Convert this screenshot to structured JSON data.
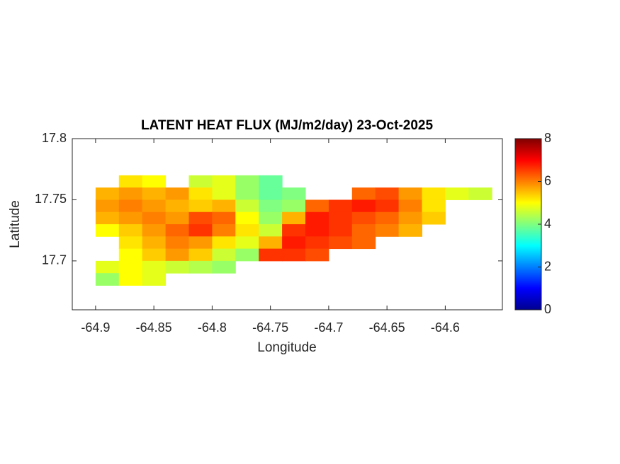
{
  "chart_data": {
    "type": "heatmap",
    "title": "LATENT HEAT FLUX (MJ/m2/day) 23-Oct-2025",
    "xlabel": "Longitude",
    "ylabel": "Latitude",
    "xlim": [
      -64.92,
      -64.551
    ],
    "ylim": [
      17.66,
      17.8
    ],
    "xticks": [
      -64.9,
      -64.85,
      -64.8,
      -64.75,
      -64.7,
      -64.65,
      -64.6
    ],
    "yticks": [
      17.7,
      17.75,
      17.8
    ],
    "colormap": "jet",
    "clim": [
      0,
      8
    ],
    "cticks": [
      0,
      2,
      4,
      6,
      8
    ],
    "x": [
      -64.89,
      -64.87,
      -64.85,
      -64.83,
      -64.81,
      -64.79,
      -64.77,
      -64.75,
      -64.73,
      -64.71,
      -64.69,
      -64.67,
      -64.65,
      -64.63,
      -64.61,
      -64.59,
      -64.57
    ],
    "y": [
      17.765,
      17.755,
      17.745,
      17.735,
      17.725,
      17.715,
      17.705,
      17.695,
      17.685
    ],
    "z": [
      [
        null,
        5.2,
        5.0,
        null,
        4.6,
        4.8,
        4.2,
        3.8,
        null,
        null,
        null,
        null,
        null,
        null,
        null,
        null,
        null
      ],
      [
        5.6,
        5.8,
        5.6,
        5.8,
        5.2,
        4.8,
        4.2,
        3.8,
        4.0,
        null,
        null,
        6.2,
        6.4,
        5.8,
        5.2,
        4.8,
        4.6
      ],
      [
        5.8,
        6.0,
        5.8,
        5.6,
        5.4,
        5.6,
        4.6,
        4.0,
        4.2,
        6.2,
        6.6,
        6.8,
        6.6,
        6.0,
        5.2,
        null,
        null
      ],
      [
        5.6,
        5.8,
        6.0,
        5.8,
        6.4,
        6.2,
        5.0,
        4.2,
        5.6,
        6.8,
        6.6,
        6.4,
        6.2,
        5.8,
        5.4,
        null,
        null
      ],
      [
        5.0,
        5.4,
        5.8,
        6.2,
        6.6,
        6.0,
        5.2,
        4.6,
        6.6,
        6.8,
        6.6,
        6.2,
        6.0,
        5.6,
        null,
        null,
        null
      ],
      [
        null,
        5.2,
        5.6,
        6.0,
        5.8,
        5.2,
        4.8,
        5.6,
        6.8,
        6.6,
        6.4,
        6.2,
        null,
        null,
        null,
        null,
        null
      ],
      [
        null,
        5.0,
        5.4,
        5.8,
        5.4,
        4.6,
        4.2,
        6.6,
        6.6,
        6.4,
        null,
        null,
        null,
        null,
        null,
        null,
        null
      ],
      [
        4.8,
        5.0,
        4.8,
        4.6,
        4.4,
        4.2,
        null,
        null,
        null,
        null,
        null,
        null,
        null,
        null,
        null,
        null,
        null
      ],
      [
        4.2,
        5.0,
        4.8,
        null,
        null,
        null,
        null,
        null,
        null,
        null,
        null,
        null,
        null,
        null,
        null,
        null,
        null
      ]
    ]
  }
}
